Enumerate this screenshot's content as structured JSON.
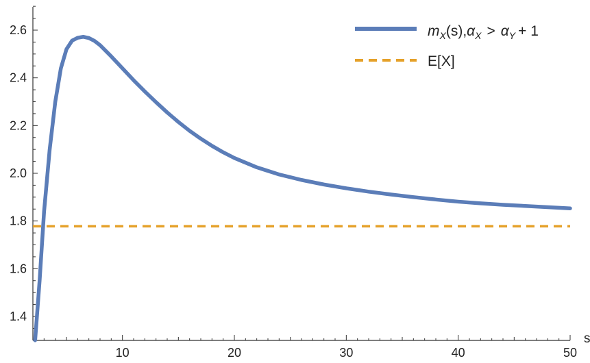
{
  "chart_data": {
    "type": "line",
    "title": "",
    "xlabel": "s",
    "ylabel": "",
    "xlim": [
      2,
      50
    ],
    "ylim": [
      1.3,
      2.7
    ],
    "x_ticks": [
      10,
      20,
      30,
      40,
      50
    ],
    "x_tick_labels": [
      "10",
      "20",
      "30",
      "40",
      "50"
    ],
    "y_ticks": [
      1.4,
      1.6,
      1.8,
      2.0,
      2.2,
      2.4,
      2.6
    ],
    "y_tick_labels": [
      "1.4",
      "1.6",
      "1.8",
      "2.0",
      "2.2",
      "2.4",
      "2.6"
    ],
    "grid": false,
    "legend_position": "top-right",
    "series": [
      {
        "name": "m_X(s), α_X > α_Y + 1",
        "legend_parts": {
          "m": "m",
          "m_sub": "X",
          "mid": "(s),",
          "alpha1": "α",
          "alpha1_sub": "X",
          "gt": ">",
          "alpha2": "α",
          "alpha2_sub": "Y",
          "plus_one": "+ 1"
        },
        "color": "#5b7db8",
        "style": "solid",
        "x": [
          2.2,
          2.6,
          3.0,
          3.5,
          4.0,
          4.5,
          5.0,
          5.5,
          6.0,
          6.5,
          7.0,
          7.5,
          8.0,
          9.0,
          10.0,
          11.0,
          12.0,
          13.0,
          14.0,
          15.0,
          16.0,
          17.0,
          18.0,
          19.0,
          20.0,
          22.0,
          24.0,
          26.0,
          28.0,
          30.0,
          32.0,
          34.0,
          36.0,
          38.0,
          40.0,
          42.0,
          44.0,
          46.0,
          48.0,
          50.0
        ],
        "y": [
          1.3,
          1.55,
          1.84,
          2.1,
          2.3,
          2.44,
          2.52,
          2.556,
          2.568,
          2.572,
          2.567,
          2.555,
          2.537,
          2.49,
          2.44,
          2.39,
          2.343,
          2.298,
          2.255,
          2.215,
          2.178,
          2.145,
          2.115,
          2.088,
          2.064,
          2.025,
          1.995,
          1.972,
          1.953,
          1.937,
          1.923,
          1.911,
          1.9,
          1.89,
          1.881,
          1.874,
          1.868,
          1.863,
          1.858,
          1.853
        ]
      },
      {
        "name": "E[X]",
        "color": "#e5a12a",
        "style": "dashed",
        "x": [
          2,
          50
        ],
        "y": [
          1.778,
          1.778
        ]
      }
    ]
  }
}
